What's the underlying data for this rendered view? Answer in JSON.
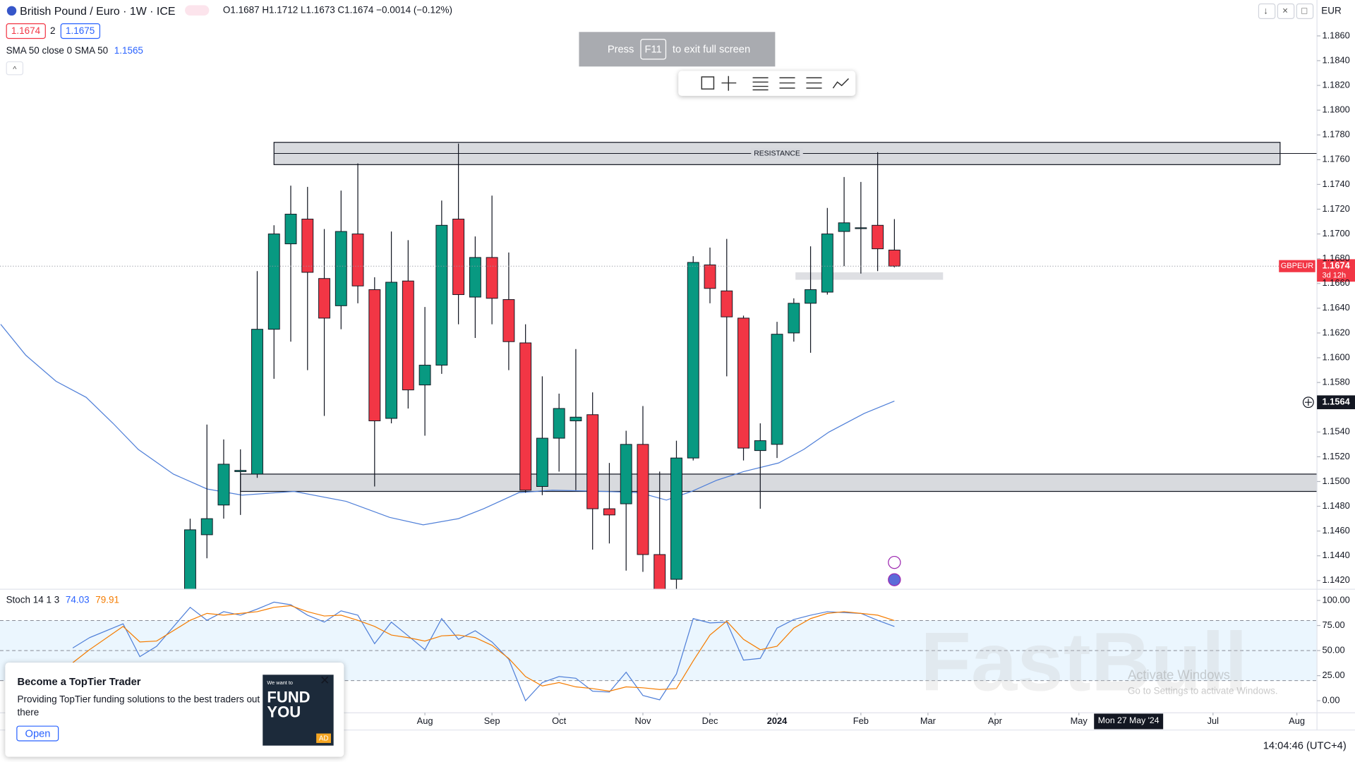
{
  "header": {
    "bid": 1.1674,
    "spread": 2,
    "ask": 1.1675,
    "currency": "EUR",
    "time": "14:04:46 (UTC+4)",
    "crosshair_date": "Mon 27 May '24"
  },
  "notice": {
    "press": "Press",
    "key": "F11",
    "rest": "to exit full screen"
  },
  "ad": {
    "title": "Become a TopTier Trader",
    "body": "Providing TopTier funding solutions to the best traders out there",
    "button": "Open",
    "image_small": "We want to",
    "image_line1": "FUND",
    "image_line2": "YOU",
    "badge": "AD"
  },
  "watermark": {
    "brand": "FastBull",
    "activate_title": "Activate Windows",
    "activate_body": "Go to Settings to activate Windows."
  },
  "chart_data": [
    {
      "type": "candlestick",
      "title": "British Pound / Euro · 1W · ICE",
      "ohlc_label": "O1.1687 H1.1712 L1.1673 C1.1674 −0.0014 (−0.12%)",
      "open": [
        1.14,
        1.1457,
        1.1481,
        1.1508,
        1.1506,
        1.1623,
        1.1692,
        1.1712,
        1.1664,
        1.1642,
        1.17,
        1.1655,
        1.1551,
        1.1662,
        1.1578,
        1.1594,
        1.1712,
        1.1649,
        1.1681,
        1.1647,
        1.1612,
        1.1496,
        1.1535,
        1.1549,
        1.1554,
        1.1478,
        1.1482,
        1.153,
        1.1441,
        1.1421,
        1.1519,
        1.1675,
        1.1654,
        1.1632,
        1.1525,
        1.153,
        1.162,
        1.1644,
        1.1653,
        1.1702,
        1.1705,
        1.1707,
        1.1687
      ],
      "high": [
        1.147,
        1.1546,
        1.1534,
        1.1526,
        1.167,
        1.1707,
        1.1739,
        1.1738,
        1.1704,
        1.1735,
        1.1757,
        1.1665,
        1.1702,
        1.1695,
        1.1641,
        1.1727,
        1.1773,
        1.1698,
        1.1731,
        1.1685,
        1.1627,
        1.1585,
        1.1571,
        1.1607,
        1.1572,
        1.1515,
        1.1541,
        1.1561,
        1.1508,
        1.1533,
        1.1682,
        1.1689,
        1.1696,
        1.1634,
        1.1547,
        1.1629,
        1.1648,
        1.169,
        1.1721,
        1.1746,
        1.1742,
        1.1766,
        1.1712
      ],
      "low": [
        1.1395,
        1.1438,
        1.147,
        1.1473,
        1.1503,
        1.1583,
        1.1613,
        1.159,
        1.1553,
        1.1623,
        1.1644,
        1.1496,
        1.1547,
        1.1559,
        1.1537,
        1.1587,
        1.1627,
        1.1616,
        1.1627,
        1.159,
        1.1491,
        1.1489,
        1.1508,
        1.1493,
        1.1445,
        1.145,
        1.1428,
        1.1427,
        1.139,
        1.141,
        1.1517,
        1.1644,
        1.1585,
        1.1517,
        1.1478,
        1.1519,
        1.1613,
        1.1604,
        1.1651,
        1.1674,
        1.1668,
        1.167,
        1.1673
      ],
      "close": [
        1.1461,
        1.147,
        1.1514,
        1.1509,
        1.1623,
        1.17,
        1.1716,
        1.1669,
        1.1632,
        1.1702,
        1.1658,
        1.1549,
        1.1661,
        1.1574,
        1.1594,
        1.1707,
        1.1651,
        1.1681,
        1.1648,
        1.1613,
        1.1493,
        1.1535,
        1.1559,
        1.1552,
        1.1478,
        1.1473,
        1.153,
        1.1441,
        1.14,
        1.1519,
        1.1677,
        1.1656,
        1.1633,
        1.1527,
        1.1533,
        1.1619,
        1.1644,
        1.1655,
        1.17,
        1.1709,
        1.1705,
        1.1688,
        1.1674
      ],
      "up_color": "#089981",
      "down_color": "#f23645",
      "xlim": [
        -11.34,
        67.2
      ],
      "ylim": [
        1.1413,
        1.1889
      ],
      "xticks": [
        {
          "value": 14,
          "label": "Aug"
        },
        {
          "value": 18,
          "label": "Sep"
        },
        {
          "value": 22,
          "label": "Oct"
        },
        {
          "value": 27,
          "label": "Nov"
        },
        {
          "value": 31,
          "label": "Dec"
        },
        {
          "value": 35,
          "label": "2024"
        },
        {
          "value": 40,
          "label": "Feb"
        },
        {
          "value": 44,
          "label": "Mar"
        },
        {
          "value": 48,
          "label": "Apr"
        },
        {
          "value": 53,
          "label": "May"
        },
        {
          "value": 61,
          "label": "Jul"
        },
        {
          "value": 66,
          "label": "Aug"
        }
      ],
      "yticks": [
        {
          "value": 1.186,
          "label": "1.1860"
        },
        {
          "value": 1.184,
          "label": "1.1840"
        },
        {
          "value": 1.182,
          "label": "1.1820"
        },
        {
          "value": 1.18,
          "label": "1.1800"
        },
        {
          "value": 1.178,
          "label": "1.1780"
        },
        {
          "value": 1.176,
          "label": "1.1760"
        },
        {
          "value": 1.174,
          "label": "1.1740"
        },
        {
          "value": 1.172,
          "label": "1.1720"
        },
        {
          "value": 1.17,
          "label": "1.1700"
        },
        {
          "value": 1.168,
          "label": "1.1680"
        },
        {
          "value": 1.166,
          "label": "1.1660"
        },
        {
          "value": 1.164,
          "label": "1.1640"
        },
        {
          "value": 1.162,
          "label": "1.1620"
        },
        {
          "value": 1.16,
          "label": "1.1600"
        },
        {
          "value": 1.158,
          "label": "1.1580"
        },
        {
          "value": 1.154,
          "label": "1.1540"
        },
        {
          "value": 1.152,
          "label": "1.1520"
        },
        {
          "value": 1.15,
          "label": "1.1500"
        },
        {
          "value": 1.148,
          "label": "1.1480"
        },
        {
          "value": 1.146,
          "label": "1.1460"
        },
        {
          "value": 1.144,
          "label": "1.1440"
        },
        {
          "value": 1.142,
          "label": "1.1420"
        }
      ],
      "sma": {
        "name": "SMA 50 close 0 SMA 50",
        "color": "#4f7fd8",
        "x": [
          -11.3,
          -9.8,
          -8.0,
          -6.2,
          -4.6,
          -3.1,
          -1.0,
          1.0,
          3.1,
          6.2,
          9.3,
          11.9,
          13.9,
          16.0,
          17.5,
          19.6,
          21.6,
          24.7,
          26.8,
          28.4,
          29.9,
          31.4,
          33.0,
          35.1,
          36.6,
          38.1,
          40.2,
          42.0
        ],
        "values": [
          1.1627,
          1.1602,
          1.1581,
          1.1568,
          1.1547,
          1.1526,
          1.1506,
          1.1494,
          1.1489,
          1.1492,
          1.1484,
          1.1471,
          1.1465,
          1.147,
          1.1478,
          1.1491,
          1.1493,
          1.1492,
          1.1491,
          1.1485,
          1.1492,
          1.1501,
          1.1508,
          1.1515,
          1.1526,
          1.154,
          1.1555,
          1.1565
        ]
      },
      "zones": [
        {
          "label": "RESISTANCE",
          "top": 1.1774,
          "bottom": 1.1756,
          "x0": 5.0,
          "x1": 65.0,
          "border": true,
          "midline": true
        },
        {
          "top": 1.1506,
          "bottom": 1.1492,
          "x0": 3.0,
          "border": true,
          "midline": false
        },
        {
          "top": 1.1669,
          "bottom": 1.1663,
          "x0": 36.1,
          "x1": 44.9,
          "border": false,
          "midline": false
        }
      ],
      "symbol": "GBPEUR",
      "countdown": "3d 12h",
      "crosshair_price": 1.1564
    },
    {
      "type": "line",
      "title": "Stoch 14 1 3",
      "xlim": [
        -11.34,
        67.2
      ],
      "ylim": [
        -12,
        111.2
      ],
      "x": [
        -7,
        -6,
        -4,
        -3,
        -2,
        0,
        1,
        2,
        3,
        4,
        5,
        6,
        7,
        8,
        9,
        10,
        11,
        12,
        13,
        14,
        15,
        16,
        17,
        18,
        19,
        20,
        21,
        22,
        23,
        24,
        25,
        26,
        27,
        28,
        29,
        30,
        31,
        32,
        33,
        34,
        35,
        36,
        37,
        38,
        39,
        40,
        41,
        42
      ],
      "series": [
        {
          "color": "#4f7fd8",
          "values": [
            52.6,
            62.9,
            76.7,
            44.0,
            54.3,
            93.1,
            80.2,
            88.8,
            85.3,
            91.4,
            98.3,
            95.7,
            85.3,
            78.4,
            89.6,
            85.3,
            56.9,
            78.4,
            64.7,
            50.9,
            81.9,
            61.2,
            69.8,
            58.6,
            41.4,
            0.0,
            18.1,
            24.1,
            22.4,
            9.5,
            8.6,
            28.4,
            5.2,
            0.9,
            26.7,
            81.9,
            77.6,
            78.4,
            40.5,
            42.2,
            72.4,
            81.0,
            85.3,
            88.8,
            87.9,
            87.1,
            80.2,
            74.03
          ]
        },
        {
          "color": "#f57c00",
          "values": [
            37.9,
            50.9,
            74.1,
            58.6,
            59.5,
            80.2,
            87.1,
            85.3,
            87.1,
            88.8,
            93.1,
            94.8,
            88.8,
            84.5,
            85.3,
            80.2,
            74.1,
            65.5,
            62.9,
            59.5,
            64.7,
            65.5,
            62.9,
            55.2,
            42.2,
            24.1,
            14.7,
            18.1,
            13.8,
            12.1,
            9.5,
            13.8,
            12.9,
            11.2,
            12.1,
            39.7,
            65.5,
            79.3,
            61.2,
            50.9,
            54.3,
            72.4,
            81.9,
            87.1,
            88.8,
            87.1,
            85.3,
            79.91
          ]
        }
      ],
      "band": [
        20,
        80
      ],
      "midline": 50,
      "yticks": [
        {
          "value": 100,
          "label": "100.00"
        },
        {
          "value": 75,
          "label": "75.00"
        },
        {
          "value": 50,
          "label": "50.00"
        },
        {
          "value": 25,
          "label": "25.00"
        },
        {
          "value": 0,
          "label": "0.00"
        }
      ]
    }
  ]
}
